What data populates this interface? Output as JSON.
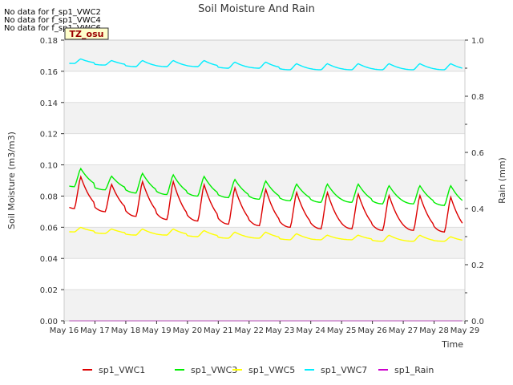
{
  "chart_data": {
    "type": "line",
    "title": "Soil Moisture And Rain",
    "xlabel": "Time",
    "ylabel": "Soil Moisture (m3/m3)",
    "y2label": "Rain (mm)",
    "ylim": [
      0,
      0.18
    ],
    "y2lim": [
      0,
      1.0
    ],
    "xlim": [
      "May 16",
      "May 29"
    ],
    "x_ticks": [
      "May 16",
      "May 17",
      "May 18",
      "May 19",
      "May 20",
      "May 21",
      "May 22",
      "May 23",
      "May 24",
      "May 25",
      "May 26",
      "May 27",
      "May 28",
      "May 29"
    ],
    "y_ticks": [
      "0.00",
      "0.02",
      "0.04",
      "0.06",
      "0.08",
      "0.10",
      "0.12",
      "0.14",
      "0.16",
      "0.18"
    ],
    "y2_ticks": [
      "0.0",
      "0.2",
      "0.4",
      "0.6",
      "0.8",
      "1.0"
    ],
    "grid": true,
    "legend_placement": "bottom",
    "no_data_messages": [
      "No data for f_sp1_VWC2",
      "No data for f_sp1_VWC4",
      "No data for f_sp1_VWC6"
    ],
    "badge": "TZ_osu",
    "series": [
      {
        "name": "sp1_VWC1",
        "color": "#dd0000",
        "axis": "left",
        "daily_base": [
          0.072,
          0.07,
          0.067,
          0.065,
          0.064,
          0.062,
          0.061,
          0.06,
          0.059,
          0.059,
          0.058,
          0.058,
          0.057
        ],
        "daily_peak": [
          0.093,
          0.088,
          0.09,
          0.09,
          0.088,
          0.086,
          0.085,
          0.083,
          0.083,
          0.082,
          0.081,
          0.081,
          0.08
        ]
      },
      {
        "name": "sp1_VWC3",
        "color": "#00ee00",
        "axis": "left",
        "daily_base": [
          0.086,
          0.084,
          0.082,
          0.081,
          0.08,
          0.079,
          0.078,
          0.077,
          0.076,
          0.076,
          0.075,
          0.075,
          0.074
        ],
        "daily_peak": [
          0.098,
          0.093,
          0.095,
          0.094,
          0.093,
          0.091,
          0.09,
          0.088,
          0.088,
          0.088,
          0.087,
          0.087,
          0.087
        ]
      },
      {
        "name": "sp1_VWC5",
        "color": "#ffff00",
        "axis": "left",
        "daily_base": [
          0.057,
          0.056,
          0.055,
          0.055,
          0.054,
          0.053,
          0.053,
          0.052,
          0.052,
          0.052,
          0.051,
          0.051,
          0.051
        ],
        "daily_peak": [
          0.06,
          0.059,
          0.059,
          0.059,
          0.058,
          0.057,
          0.057,
          0.056,
          0.055,
          0.055,
          0.055,
          0.055,
          0.054
        ]
      },
      {
        "name": "sp1_VWC7",
        "color": "#00eeff",
        "axis": "left",
        "daily_base": [
          0.165,
          0.164,
          0.163,
          0.163,
          0.163,
          0.162,
          0.162,
          0.161,
          0.161,
          0.161,
          0.161,
          0.161,
          0.161
        ],
        "daily_peak": [
          0.168,
          0.167,
          0.167,
          0.167,
          0.167,
          0.166,
          0.166,
          0.165,
          0.165,
          0.165,
          0.165,
          0.165,
          0.165
        ]
      },
      {
        "name": "sp1_Rain",
        "color": "#cc00cc",
        "axis": "right",
        "daily_base": [
          0,
          0,
          0,
          0,
          0,
          0,
          0,
          0,
          0,
          0,
          0,
          0,
          0
        ],
        "daily_peak": [
          0,
          0,
          0,
          0,
          0,
          0,
          0,
          0,
          0,
          0,
          0,
          0,
          0
        ]
      }
    ]
  }
}
